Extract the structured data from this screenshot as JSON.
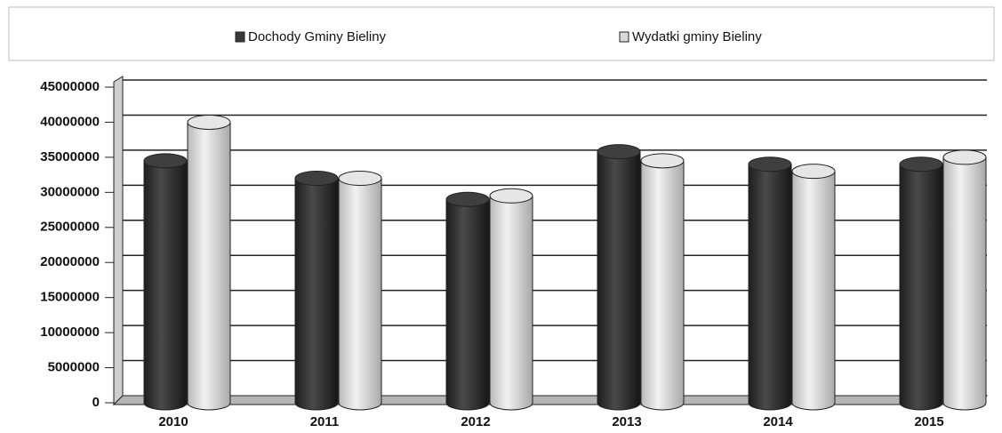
{
  "chart_data": {
    "type": "bar3d",
    "categories": [
      "2010",
      "2011",
      "2012",
      "2013",
      "2014",
      "2015"
    ],
    "series": [
      {
        "name": "Dochody Gminy Bieliny",
        "color": "#3a3a3a",
        "values": [
          34500000,
          32000000,
          29000000,
          35800000,
          34000000,
          34000000
        ]
      },
      {
        "name": "Wydatki gminy Bieliny",
        "color": "#d9d9d9",
        "values": [
          40000000,
          32000000,
          29500000,
          34500000,
          33000000,
          35000000
        ]
      }
    ],
    "ylim": [
      0,
      45000000
    ],
    "yticks": [
      0,
      5000000,
      10000000,
      15000000,
      20000000,
      25000000,
      30000000,
      35000000,
      40000000,
      45000000
    ],
    "grid": true,
    "legend": "top"
  }
}
